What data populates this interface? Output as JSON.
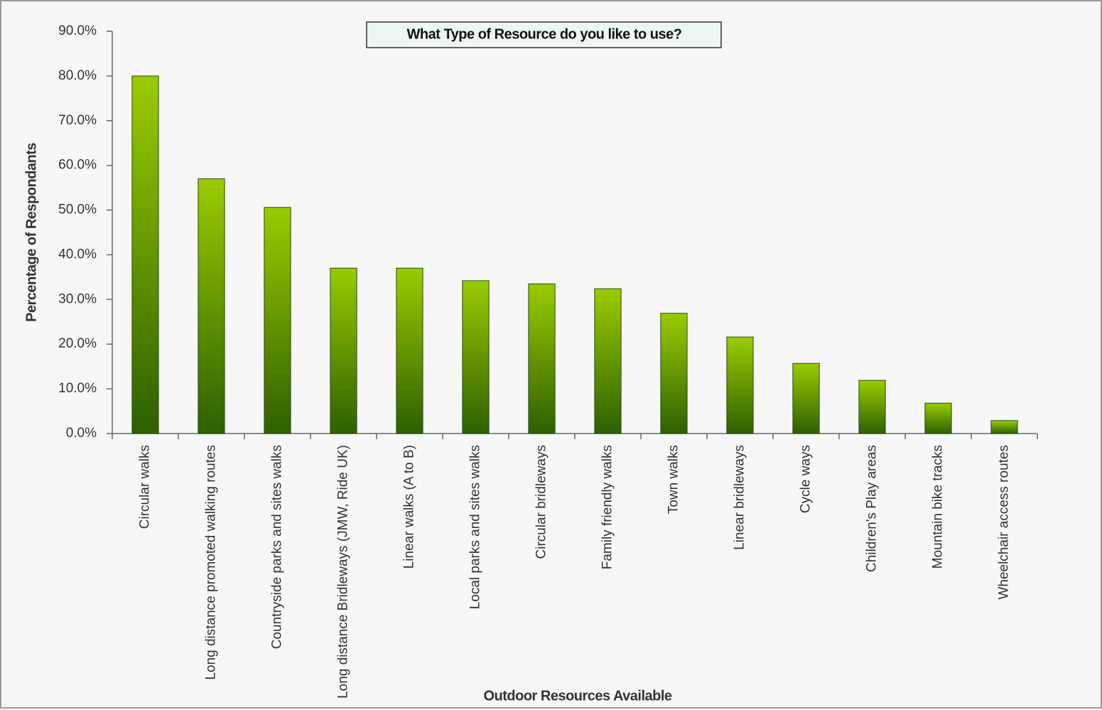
{
  "chart_data": {
    "type": "bar",
    "title": "What Type of Resource do you like to use?",
    "x_label": "Outdoor Resources Available",
    "y_label": "Percentage of Respondants",
    "categories": [
      "Circular walks",
      "Long distance promoted walking routes",
      "Countryside parks and sites walks",
      "Long distance Bridleways (JMW, Ride UK)",
      "Linear walks (A to B)",
      "Local parks and sites walks",
      "Circular bridleways",
      "Family friendly walks",
      "Town walks",
      "Linear bridleways",
      "Cycle ways",
      "Children's  Play areas",
      "Mountain bike tracks",
      "Wheelchair access routes"
    ],
    "values": [
      80.0,
      57.0,
      50.6,
      37.0,
      37.0,
      34.2,
      33.5,
      32.4,
      26.9,
      21.6,
      15.7,
      11.9,
      6.8,
      2.9
    ],
    "color": "#99cc00",
    "ylim": [
      0,
      90
    ],
    "yticks": [
      {
        "value": 0,
        "label": "0.0%"
      },
      {
        "value": 10,
        "label": "10.0%"
      },
      {
        "value": 20,
        "label": "20.0%"
      },
      {
        "value": 30,
        "label": "30.0%"
      },
      {
        "value": 40,
        "label": "40.0%"
      },
      {
        "value": 50,
        "label": "50.0%"
      },
      {
        "value": 60,
        "label": "60.0%"
      },
      {
        "value": 70,
        "label": "70.0%"
      },
      {
        "value": 80,
        "label": "80.0%"
      },
      {
        "value": 90,
        "label": "90.0%"
      }
    ],
    "grid": false
  }
}
